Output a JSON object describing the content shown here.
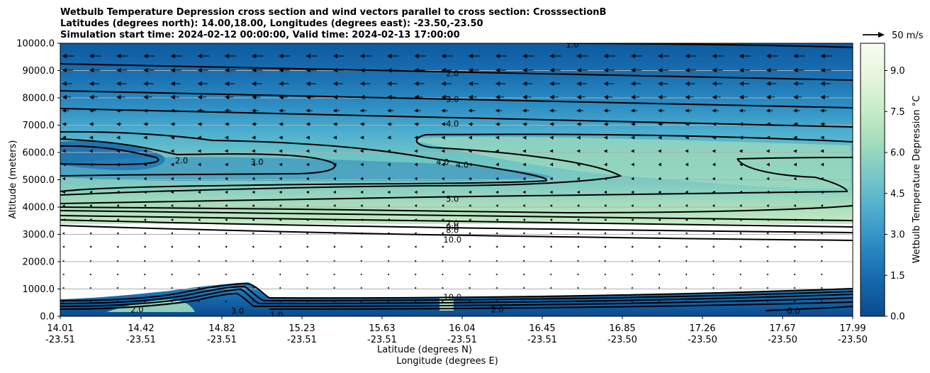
{
  "chart_data": {
    "type": "contour",
    "title": [
      "Wetbulb Temperature Depression cross section and wind vectors parallel to cross section: CrosssectionB",
      "Latitudes (degrees north): 14.00,18.00, Longitudes (degrees east): -23.50,-23.50",
      "Simulation start time: 2024-02-12 00:00:00, Valid time: 2024-02-13 17:00:00"
    ],
    "xlabel_1": "Latitude (degrees N)",
    "xlabel_2": "Longitude (degrees E)",
    "ylabel": "Altitude (meters)",
    "ylim": [
      0,
      10000
    ],
    "x_ticks": [
      {
        "lat": "14.01",
        "lon": "-23.51"
      },
      {
        "lat": "14.42",
        "lon": "-23.51"
      },
      {
        "lat": "14.82",
        "lon": "-23.51"
      },
      {
        "lat": "15.23",
        "lon": "-23.51"
      },
      {
        "lat": "15.63",
        "lon": "-23.51"
      },
      {
        "lat": "16.04",
        "lon": "-23.51"
      },
      {
        "lat": "16.45",
        "lon": "-23.51"
      },
      {
        "lat": "16.85",
        "lon": "-23.50"
      },
      {
        "lat": "17.26",
        "lon": "-23.50"
      },
      {
        "lat": "17.67",
        "lon": "-23.50"
      },
      {
        "lat": "17.99",
        "lon": "-23.50"
      }
    ],
    "y_ticks": [
      0,
      1000,
      2000,
      3000,
      4000,
      5000,
      6000,
      7000,
      8000,
      9000,
      10000
    ],
    "y_tick_labels": [
      "0.0",
      "1000.0",
      "2000.0",
      "3000.0",
      "4000.0",
      "5000.0",
      "6000.0",
      "7000.0",
      "8000.0",
      "9000.0",
      "10000.0"
    ],
    "grid": "horizontal",
    "colorbar": {
      "label": "Wetbulb Temperature Depression °C",
      "range": [
        0,
        10
      ],
      "ticks": [
        0.0,
        1.5,
        3.0,
        4.5,
        6.0,
        7.5,
        9.0
      ],
      "tick_labels": [
        "0.0",
        "1.5",
        "3.0",
        "4.5",
        "6.0",
        "7.5",
        "9.0"
      ],
      "colormap": [
        "#0b4a8e",
        "#1467ac",
        "#2b87c0",
        "#4aa9cf",
        "#72c5c8",
        "#a0dbbc",
        "#c7ebc5",
        "#e6f5de",
        "#f7fcf0"
      ]
    },
    "vector_key": {
      "label": "50 m/s",
      "speed": 50
    },
    "contour_labels": [
      {
        "text": "1.0",
        "x": 16.6,
        "y": 9950
      },
      {
        "text": "2.0",
        "x": 15.99,
        "y": 8900
      },
      {
        "text": "3.0",
        "x": 15.99,
        "y": 7950
      },
      {
        "text": "4.0",
        "x": 15.99,
        "y": 7050
      },
      {
        "text": "4.0",
        "x": 15.94,
        "y": 5650
      },
      {
        "text": "4.0",
        "x": 16.04,
        "y": 5550
      },
      {
        "text": "3.0",
        "x": 15.0,
        "y": 5650
      },
      {
        "text": "2.0",
        "x": 14.62,
        "y": 5700
      },
      {
        "text": "5.0",
        "x": 15.99,
        "y": 4300
      },
      {
        "text": "7.0",
        "x": 15.99,
        "y": 3400
      },
      {
        "text": "8.0",
        "x": 15.99,
        "y": 3150
      },
      {
        "text": "9.0",
        "x": 15.99,
        "y": 3270
      },
      {
        "text": "10.0",
        "x": 15.99,
        "y": 2800
      },
      {
        "text": "10.0",
        "x": 15.99,
        "y": 700
      },
      {
        "text": "1.0",
        "x": 15.1,
        "y": 50
      },
      {
        "text": "2.0",
        "x": 14.4,
        "y": 250
      },
      {
        "text": "3.0",
        "x": 14.9,
        "y": 200
      },
      {
        "text": "0.0",
        "x": 17.72,
        "y": 200
      },
      {
        "text": "2.0",
        "x": 16.22,
        "y": 250
      }
    ]
  }
}
